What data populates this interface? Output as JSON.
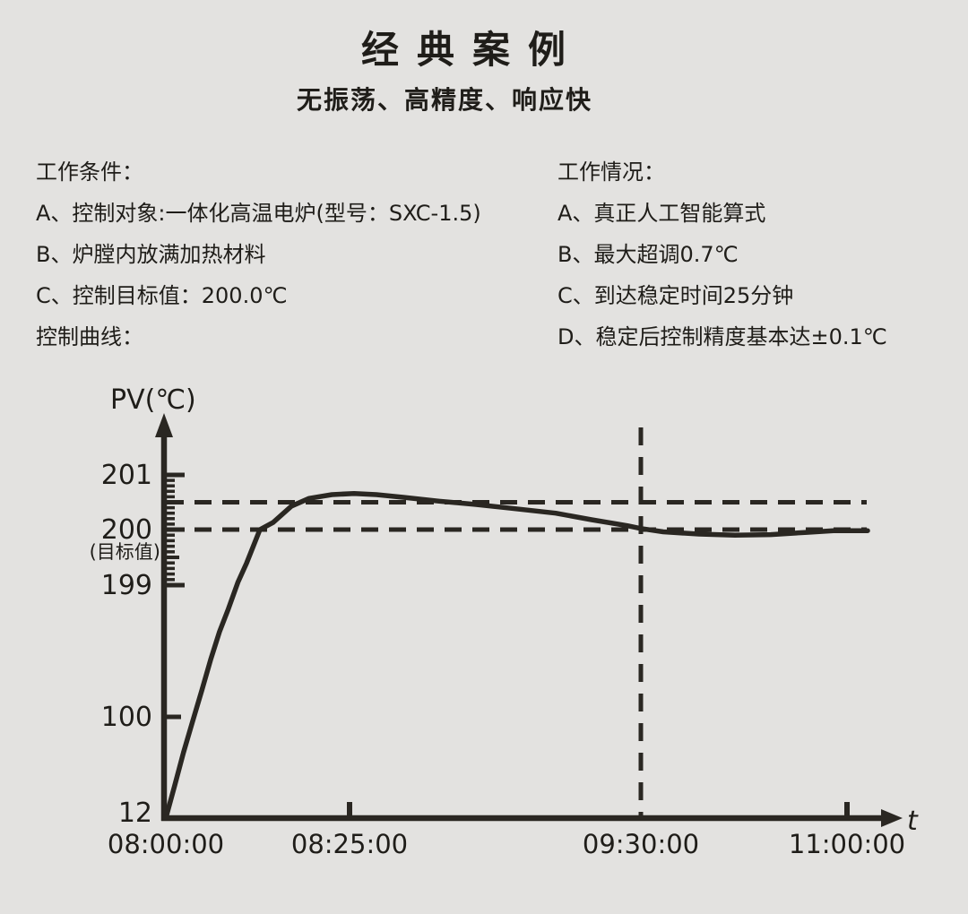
{
  "page": {
    "title": "经典案例",
    "subtitle": "无振荡、高精度、响应快"
  },
  "conditions": {
    "heading": "工作条件：",
    "items": [
      "A、控制对象:一体化高温电炉(型号：SXC-1.5)",
      "B、炉膛内放满加热材料",
      "C、控制目标值：200.0℃"
    ],
    "curve_label": "控制曲线："
  },
  "results": {
    "heading": "工作情况：",
    "items": [
      "A、真正人工智能算式",
      "B、最大超调0.7℃",
      "C、到达稳定时间25分钟",
      "D、稳定后控制精度基本达±0.1℃"
    ]
  },
  "colors": {
    "background": "#e3e2e0",
    "ink": "#2a2722",
    "text": "#1f1d19"
  },
  "chart_data": {
    "type": "line",
    "title": "控制曲线",
    "ylabel": "PV(℃)",
    "xlabel": "t",
    "target_value": 200.0,
    "target_annotation": "(目标值)",
    "upper_band": 200.5,
    "vertical_marker_t": 90,
    "x_ticks": [
      {
        "label": "08:00:00",
        "t": 0
      },
      {
        "label": "08:25:00",
        "t": 25
      },
      {
        "label": "09:30:00",
        "t": 90
      },
      {
        "label": "11:00:00",
        "t": 180
      }
    ],
    "y_ticks": [
      {
        "label": "12",
        "v": 12
      },
      {
        "label": "100",
        "v": 100
      },
      {
        "label": "199",
        "v": 199
      },
      {
        "label": "200",
        "v": 200
      },
      {
        "label": "201",
        "v": 201
      }
    ],
    "y_minor_tick_range": [
      199,
      201
    ],
    "y_minor_tick_step": 0.1,
    "series": [
      {
        "name": "PV",
        "points": [
          [
            0,
            12
          ],
          [
            1.2,
            40
          ],
          [
            2.4,
            69
          ],
          [
            3.6,
            95
          ],
          [
            4.9,
            120
          ],
          [
            6.1,
            143
          ],
          [
            7.3,
            164
          ],
          [
            8.5,
            181
          ],
          [
            9.8,
            199.05
          ],
          [
            11.0,
            199.4
          ],
          [
            12.8,
            200.0
          ],
          [
            14.6,
            200.13
          ],
          [
            17.1,
            200.43
          ],
          [
            19.5,
            200.57
          ],
          [
            22.6,
            200.64
          ],
          [
            26.0,
            200.66
          ],
          [
            31.0,
            200.64
          ],
          [
            37.0,
            200.59
          ],
          [
            45.0,
            200.52
          ],
          [
            53.0,
            200.46
          ],
          [
            61.0,
            200.39
          ],
          [
            71.0,
            200.3
          ],
          [
            79.0,
            200.18
          ],
          [
            87.0,
            200.07
          ],
          [
            90.0,
            200.02
          ],
          [
            99.8,
            199.96
          ],
          [
            115.4,
            199.92
          ],
          [
            131.1,
            199.9
          ],
          [
            146.7,
            199.91
          ],
          [
            162.4,
            199.95
          ],
          [
            174.1,
            199.98
          ],
          [
            189.0,
            199.98
          ]
        ]
      }
    ]
  }
}
